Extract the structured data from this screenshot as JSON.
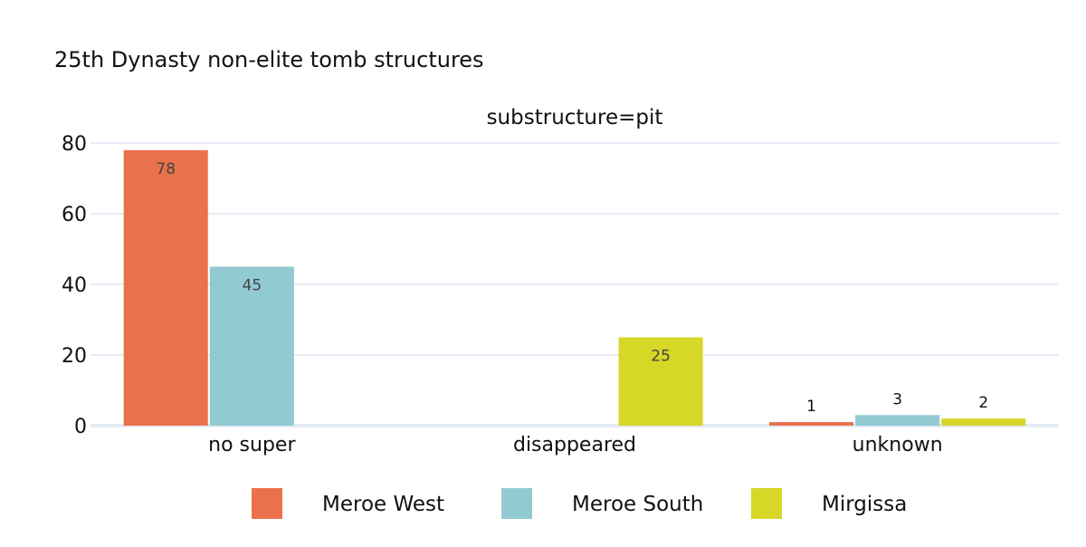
{
  "chart_data": {
    "type": "bar",
    "title": "25th Dynasty non-elite tomb structures",
    "subtitle": "substructure=pit",
    "categories": [
      "no super",
      "disappeared",
      "unknown"
    ],
    "series": [
      {
        "name": "Meroe West",
        "color": "#E9724C",
        "values": [
          78,
          null,
          1
        ]
      },
      {
        "name": "Meroe South",
        "color": "#92CAD1",
        "values": [
          45,
          null,
          3
        ]
      },
      {
        "name": "Mirgissa",
        "color": "#D6D727",
        "values": [
          null,
          25,
          2
        ]
      }
    ],
    "ylim": [
      0,
      80
    ],
    "yticks": [
      0,
      20,
      40,
      60,
      80
    ],
    "grid": true,
    "legend_position": "bottom"
  }
}
